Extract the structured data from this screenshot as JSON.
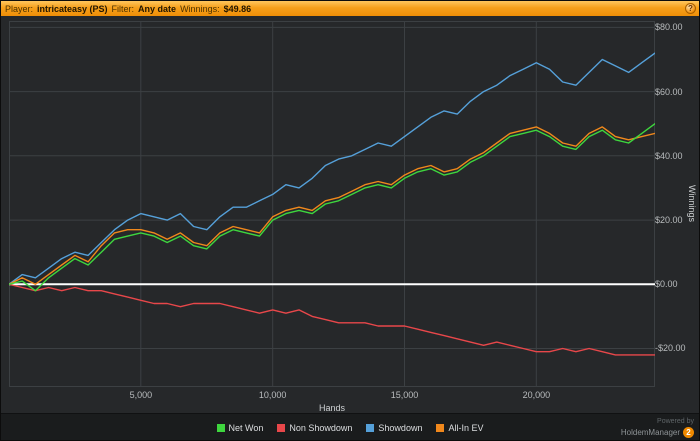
{
  "header": {
    "player_label": "Player:",
    "player_value": "intricateasy (PS)",
    "filter_label": "Filter:",
    "filter_value": "Any date",
    "winnings_label": "Winnings:",
    "winnings_value": "$49.86",
    "help_icon": "?"
  },
  "footer": {
    "powered_by": "Powered by",
    "brand": "HoldemManager",
    "brand_badge": "2"
  },
  "colors": {
    "background": "#26282a",
    "grid": "#3c4043",
    "zero_line": "#ffffff",
    "header_orange": "#f6a01b",
    "accent_orange": "#f08a00",
    "tick_text": "#b9bcbe"
  },
  "chart_data": {
    "type": "line",
    "title": "",
    "xlabel": "Hands",
    "ylabel": "Winnings",
    "xlim": [
      0,
      24500
    ],
    "ylim": [
      -32,
      82
    ],
    "grid": true,
    "legend_position": "bottom",
    "zero_line": 0,
    "x_gridlines": [
      5000,
      10000,
      15000,
      20000
    ],
    "y_gridlines": [
      -20,
      0,
      20,
      40,
      60,
      80
    ],
    "x_ticks": [
      {
        "value": 5000,
        "label": "5,000"
      },
      {
        "value": 10000,
        "label": "10,000"
      },
      {
        "value": 15000,
        "label": "15,000"
      },
      {
        "value": 20000,
        "label": "20,000"
      }
    ],
    "y_ticks": [
      {
        "value": 80,
        "label": "$80.00"
      },
      {
        "value": 60,
        "label": "$60.00"
      },
      {
        "value": 40,
        "label": "$40.00"
      },
      {
        "value": 20,
        "label": "$20.00"
      },
      {
        "value": 0,
        "label": "$0.00"
      },
      {
        "value": -20,
        "label": "-$20.00"
      }
    ],
    "x": [
      0,
      500,
      1000,
      1500,
      2000,
      2500,
      3000,
      3500,
      4000,
      4500,
      5000,
      5500,
      6000,
      6500,
      7000,
      7500,
      8000,
      8500,
      9000,
      9500,
      10000,
      10500,
      11000,
      11500,
      12000,
      12500,
      13000,
      13500,
      14000,
      14500,
      15000,
      15500,
      16000,
      16500,
      17000,
      17500,
      18000,
      18500,
      19000,
      19500,
      20000,
      20500,
      21000,
      21500,
      22000,
      22500,
      23000,
      23500,
      24000,
      24500
    ],
    "series": [
      {
        "name": "Net Won",
        "color": "#3ed63e",
        "values": [
          0,
          1,
          -2,
          2,
          5,
          8,
          6,
          10,
          14,
          15,
          16,
          15,
          13,
          15,
          12,
          11,
          15,
          17,
          16,
          15,
          20,
          22,
          23,
          22,
          25,
          26,
          28,
          30,
          31,
          30,
          33,
          35,
          36,
          34,
          35,
          38,
          40,
          43,
          46,
          47,
          48,
          46,
          43,
          42,
          46,
          48,
          45,
          44,
          47,
          50
        ]
      },
      {
        "name": "Non Showdown",
        "color": "#e8474a",
        "values": [
          0,
          -1,
          -2,
          -1,
          -2,
          -1,
          -2,
          -2,
          -3,
          -4,
          -5,
          -6,
          -6,
          -7,
          -6,
          -6,
          -6,
          -7,
          -8,
          -9,
          -8,
          -9,
          -8,
          -10,
          -11,
          -12,
          -12,
          -12,
          -13,
          -13,
          -13,
          -14,
          -15,
          -16,
          -17,
          -18,
          -19,
          -18,
          -19,
          -20,
          -21,
          -21,
          -20,
          -21,
          -20,
          -21,
          -22,
          -22,
          -22,
          -22
        ]
      },
      {
        "name": "Showdown",
        "color": "#55a0d9",
        "values": [
          0,
          3,
          2,
          5,
          8,
          10,
          9,
          13,
          17,
          20,
          22,
          21,
          20,
          22,
          18,
          17,
          21,
          24,
          24,
          26,
          28,
          31,
          30,
          33,
          37,
          39,
          40,
          42,
          44,
          43,
          46,
          49,
          52,
          54,
          53,
          57,
          60,
          62,
          65,
          67,
          69,
          67,
          63,
          62,
          66,
          70,
          68,
          66,
          69,
          72
        ]
      },
      {
        "name": "All-In EV",
        "color": "#f0881c",
        "values": [
          0,
          2,
          0,
          3,
          6,
          9,
          7,
          12,
          16,
          17,
          17,
          16,
          14,
          16,
          13,
          12,
          16,
          18,
          17,
          16,
          21,
          23,
          24,
          23,
          26,
          27,
          29,
          31,
          32,
          31,
          34,
          36,
          37,
          35,
          36,
          39,
          41,
          44,
          47,
          48,
          49,
          47,
          44,
          43,
          47,
          49,
          46,
          45,
          46,
          47
        ]
      }
    ]
  }
}
